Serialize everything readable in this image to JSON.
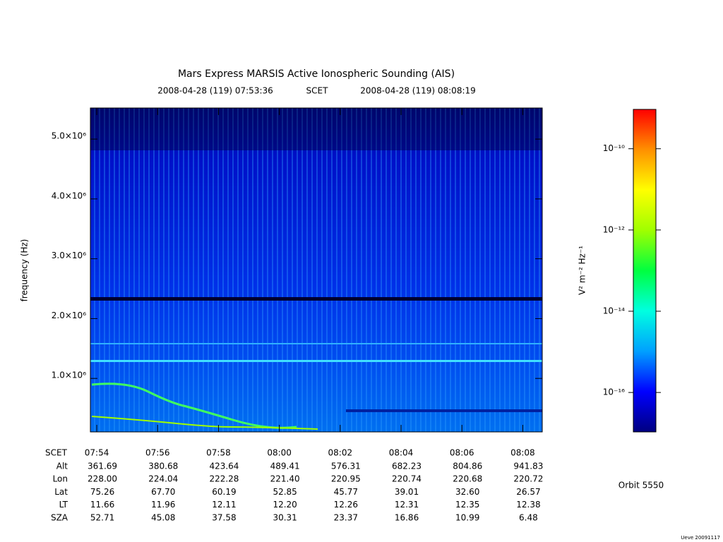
{
  "chart_data": {
    "type": "heatmap",
    "title": "Mars Express MARSIS Active Ionospheric Sounding (AIS)",
    "start_time": "2008-04-28 (119) 07:53:36",
    "time_system": "SCET",
    "end_time": "2008-04-28 (119) 08:08:19",
    "y_label": "frequency (Hz)",
    "ylim": [
      106000,
      5520000
    ],
    "yticks": [
      {
        "value": 1000000,
        "label": "1.0×10⁶"
      },
      {
        "value": 2000000,
        "label": "2.0×10⁶"
      },
      {
        "value": 3000000,
        "label": "3.0×10⁶"
      },
      {
        "value": 4000000,
        "label": "4.0×10⁶"
      },
      {
        "value": 5000000,
        "label": "5.0×10⁶"
      }
    ],
    "xlim": [
      473.79,
      488.64
    ],
    "xticks": [
      {
        "value": 474,
        "label": "07:54"
      },
      {
        "value": 476,
        "label": "07:56"
      },
      {
        "value": 478,
        "label": "07:58"
      },
      {
        "value": 480,
        "label": "08:00"
      },
      {
        "value": 482,
        "label": "08:02"
      },
      {
        "value": 484,
        "label": "08:04"
      },
      {
        "value": 486,
        "label": "08:06"
      },
      {
        "value": 488,
        "label": "08:08"
      }
    ],
    "colorbar": {
      "label": "V² m⁻² Hz⁻¹",
      "log_scale": true,
      "clim": [
        1.07e-17,
        9.3e-10
      ],
      "ticks": [
        {
          "value": 1e-10,
          "label": "10⁻¹⁰"
        },
        {
          "value": 1e-12,
          "label": "10⁻¹²"
        },
        {
          "value": 1e-14,
          "label": "10⁻¹⁴"
        },
        {
          "value": 1e-16,
          "label": "10⁻¹⁶"
        }
      ],
      "colormap": [
        "#000080",
        "#0000ff",
        "#00a0ff",
        "#00ffe0",
        "#00ff40",
        "#a0ff00",
        "#ffff00",
        "#ff9000",
        "#ff0000"
      ]
    },
    "table": {
      "header": "SCET",
      "rows": [
        {
          "label": "Alt",
          "values": [
            "361.69",
            "380.68",
            "423.64",
            "489.41",
            "576.31",
            "682.23",
            "804.86",
            "941.83"
          ]
        },
        {
          "label": "Lon",
          "values": [
            "228.00",
            "224.04",
            "222.28",
            "221.40",
            "220.95",
            "220.74",
            "220.68",
            "220.72"
          ]
        },
        {
          "label": "Lat",
          "values": [
            "75.26",
            "67.70",
            "60.19",
            "52.85",
            "45.77",
            "39.01",
            "32.60",
            "26.57"
          ]
        },
        {
          "label": "LT",
          "values": [
            "11.66",
            "11.96",
            "12.11",
            "12.20",
            "12.26",
            "12.31",
            "12.35",
            "12.38"
          ]
        },
        {
          "label": "SZA",
          "values": [
            "52.71",
            "45.08",
            "37.58",
            "30.31",
            "23.37",
            "16.86",
            "10.99",
            "6.48"
          ]
        }
      ]
    },
    "orbit": "Orbit 5550",
    "footer": "Ueve 20091117"
  }
}
